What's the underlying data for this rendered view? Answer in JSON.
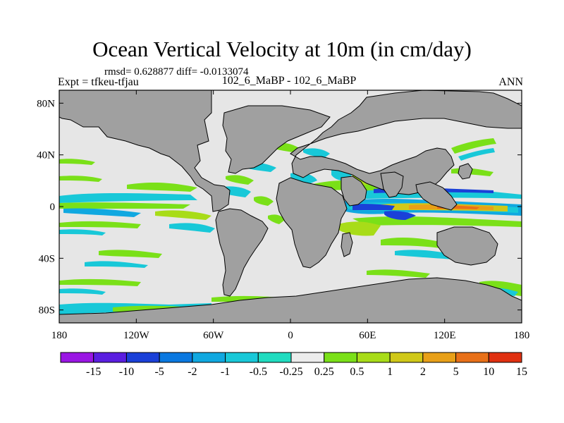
{
  "title": "Ocean Vertical Velocity at 10m (in cm/day)",
  "stats_line": "rmsd= 0.628877 diff= -0.0133074",
  "expt_label": "Expt = tfkeu-tfjau",
  "case_label": "102_6_MaBP - 102_6_MaBP",
  "season_label": "ANN",
  "map": {
    "lon_range": [
      -180,
      180
    ],
    "lat_range": [
      -90,
      90
    ],
    "x_ticks": [
      {
        "value": -180,
        "label": "180"
      },
      {
        "value": -120,
        "label": "120W"
      },
      {
        "value": -60,
        "label": "60W"
      },
      {
        "value": 0,
        "label": "0"
      },
      {
        "value": 60,
        "label": "60E"
      },
      {
        "value": 120,
        "label": "120E"
      },
      {
        "value": 180,
        "label": "180"
      }
    ],
    "y_ticks": [
      {
        "value": 80,
        "label": "80N"
      },
      {
        "value": 40,
        "label": "40N"
      },
      {
        "value": 0,
        "label": "0"
      },
      {
        "value": -40,
        "label": "40S"
      },
      {
        "value": -80,
        "label": "80S"
      }
    ],
    "colors": {
      "ocean_background": "#e6e6e6",
      "land": "#a0a0a0"
    }
  },
  "colorbar": {
    "labels": [
      "-15",
      "-10",
      "-5",
      "-2",
      "-1",
      "-0.5",
      "-0.25",
      "0.25",
      "0.5",
      "1",
      "2",
      "5",
      "10",
      "15"
    ],
    "colors": [
      "#9a16e4",
      "#5a1ee0",
      "#1a40d8",
      "#0a78e0",
      "#10a8e0",
      "#18c8d8",
      "#20dcc0",
      "#ececec",
      "#7ae018",
      "#a8dc18",
      "#d0c818",
      "#e8a018",
      "#e87018",
      "#e03010"
    ]
  }
}
